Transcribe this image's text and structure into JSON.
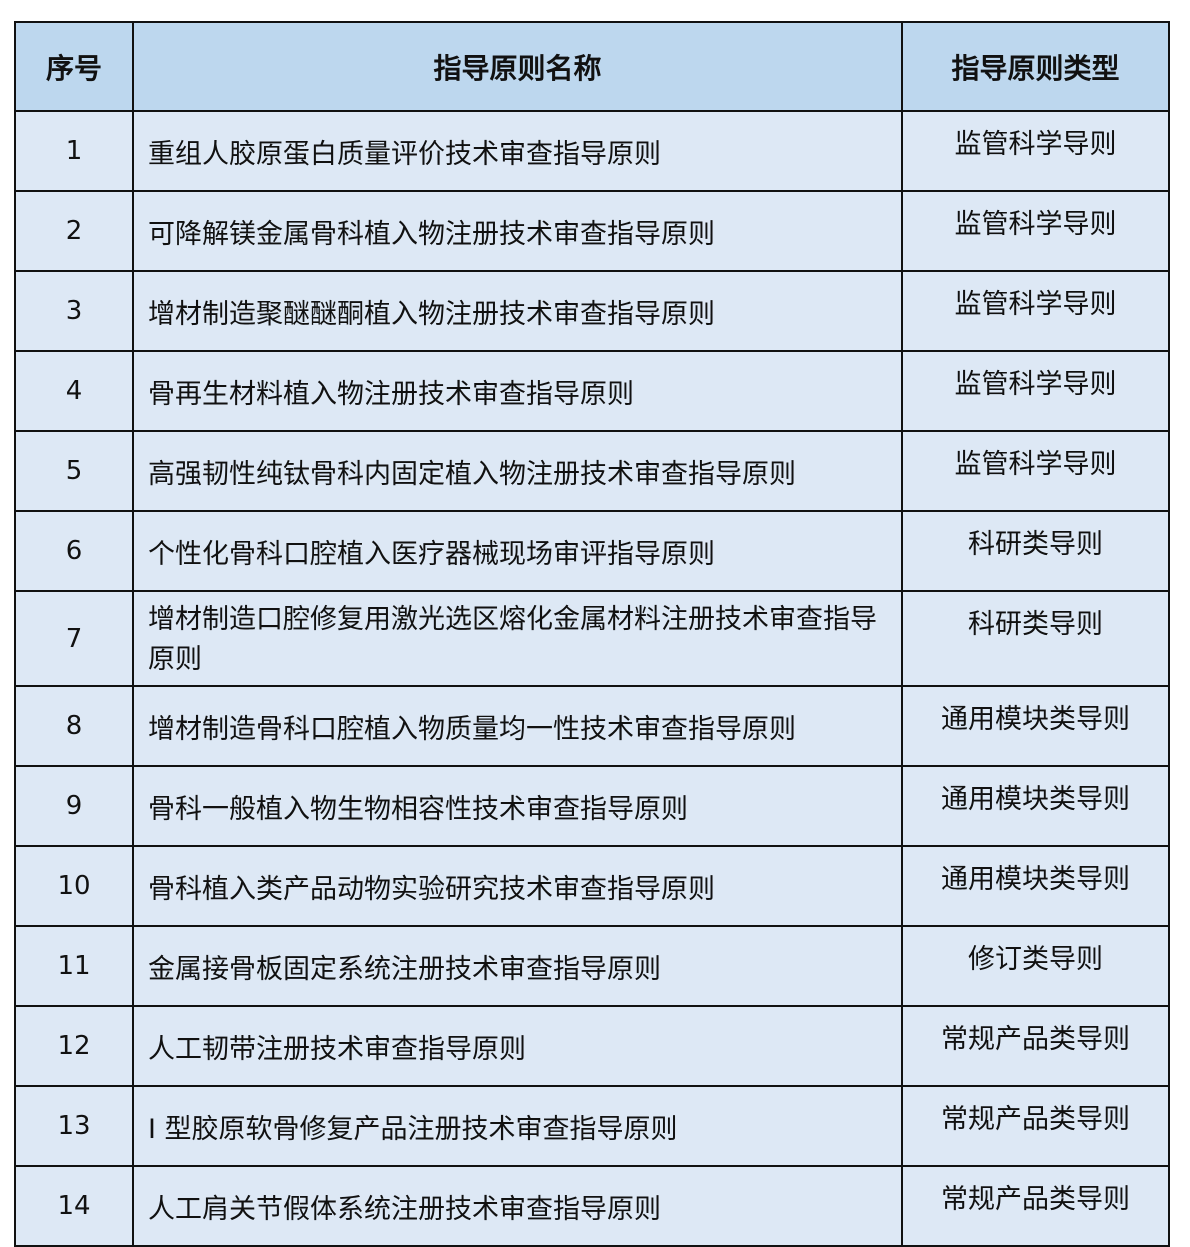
{
  "table": {
    "headers": [
      "序号",
      "指导原则名称",
      "指导原则类型"
    ],
    "rows": [
      {
        "no": "1",
        "name": "重组人胶原蛋白质量评价技术审查指导原则",
        "type": "监管科学导则"
      },
      {
        "no": "2",
        "name": "可降解镁金属骨科植入物注册技术审查指导原则",
        "type": "监管科学导则"
      },
      {
        "no": "3",
        "name": "增材制造聚醚醚酮植入物注册技术审查指导原则",
        "type": "监管科学导则"
      },
      {
        "no": "4",
        "name": "骨再生材料植入物注册技术审查指导原则",
        "type": "监管科学导则"
      },
      {
        "no": "5",
        "name": "高强韧性纯钛骨科内固定植入物注册技术审查指导原则",
        "type": "监管科学导则"
      },
      {
        "no": "6",
        "name": "个性化骨科口腔植入医疗器械现场审评指导原则",
        "type": "科研类导则"
      },
      {
        "no": "7",
        "name": "增材制造口腔修复用激光选区熔化金属材料注册技术审查指导原则",
        "type": "科研类导则"
      },
      {
        "no": "8",
        "name": "增材制造骨科口腔植入物质量均一性技术审查指导原则",
        "type": "通用模块类导则"
      },
      {
        "no": "9",
        "name": "骨科一般植入物生物相容性技术审查指导原则",
        "type": "通用模块类导则"
      },
      {
        "no": "10",
        "name": "骨科植入类产品动物实验研究技术审查指导原则",
        "type": "通用模块类导则"
      },
      {
        "no": "11",
        "name": "金属接骨板固定系统注册技术审查指导原则",
        "type": "修订类导则"
      },
      {
        "no": "12",
        "name": "人工韧带注册技术审查指导原则",
        "type": "常规产品类导则"
      },
      {
        "no": "13",
        "name": "I 型胶原软骨修复产品注册技术审查指导原则",
        "type": "常规产品类导则"
      },
      {
        "no": "14",
        "name": "人工肩关节假体系统注册技术审查指导原则",
        "type": "常规产品类导则"
      }
    ]
  }
}
